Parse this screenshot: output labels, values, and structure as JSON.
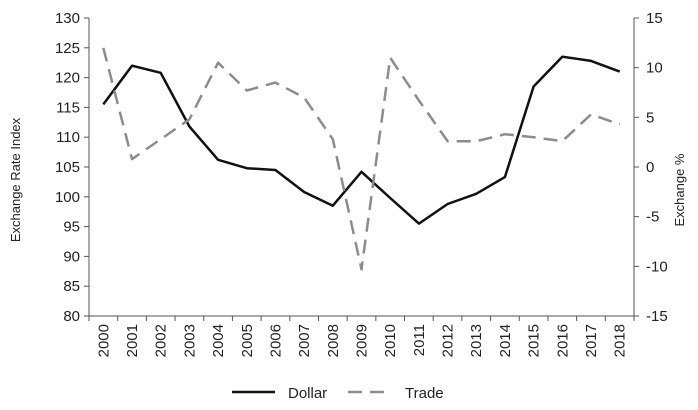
{
  "chart_data": {
    "type": "line",
    "title": "",
    "xlabel": "",
    "ylabel": "Exchange Rate Index",
    "y2label": "Exchange %",
    "categories": [
      "2000",
      "2001",
      "2002",
      "2003",
      "2004",
      "2005",
      "2006",
      "2007",
      "2008",
      "2009",
      "2010",
      "2011",
      "2012",
      "2013",
      "2014",
      "2015",
      "2016",
      "2017",
      "2018"
    ],
    "ylim": [
      80,
      130
    ],
    "y_ticks": [
      80,
      85,
      90,
      95,
      100,
      105,
      110,
      115,
      120,
      125,
      130
    ],
    "y2lim": [
      -15,
      15
    ],
    "y2_ticks": [
      -15,
      -10,
      -5,
      0,
      5,
      10,
      15
    ],
    "grid": false,
    "legend_position": "bottom",
    "series": [
      {
        "name": "Dollar",
        "axis": "left",
        "style": "solid",
        "color": "#111111",
        "values": [
          115.5,
          122,
          120.8,
          111.8,
          106.2,
          104.8,
          104.5,
          100.8,
          98.5,
          104.2,
          99.8,
          95.5,
          98.8,
          100.5,
          103.3,
          118.5,
          123.5,
          122.8,
          121
        ]
      },
      {
        "name": "Trade",
        "axis": "right",
        "style": "dashed",
        "color": "#8c8c8c",
        "values": [
          12,
          0.8,
          2.8,
          4.8,
          10.5,
          7.7,
          8.5,
          7,
          2.8,
          -10.3,
          11,
          6.7,
          2.6,
          2.6,
          3.3,
          3,
          2.6,
          5.3,
          4.3
        ]
      }
    ]
  }
}
